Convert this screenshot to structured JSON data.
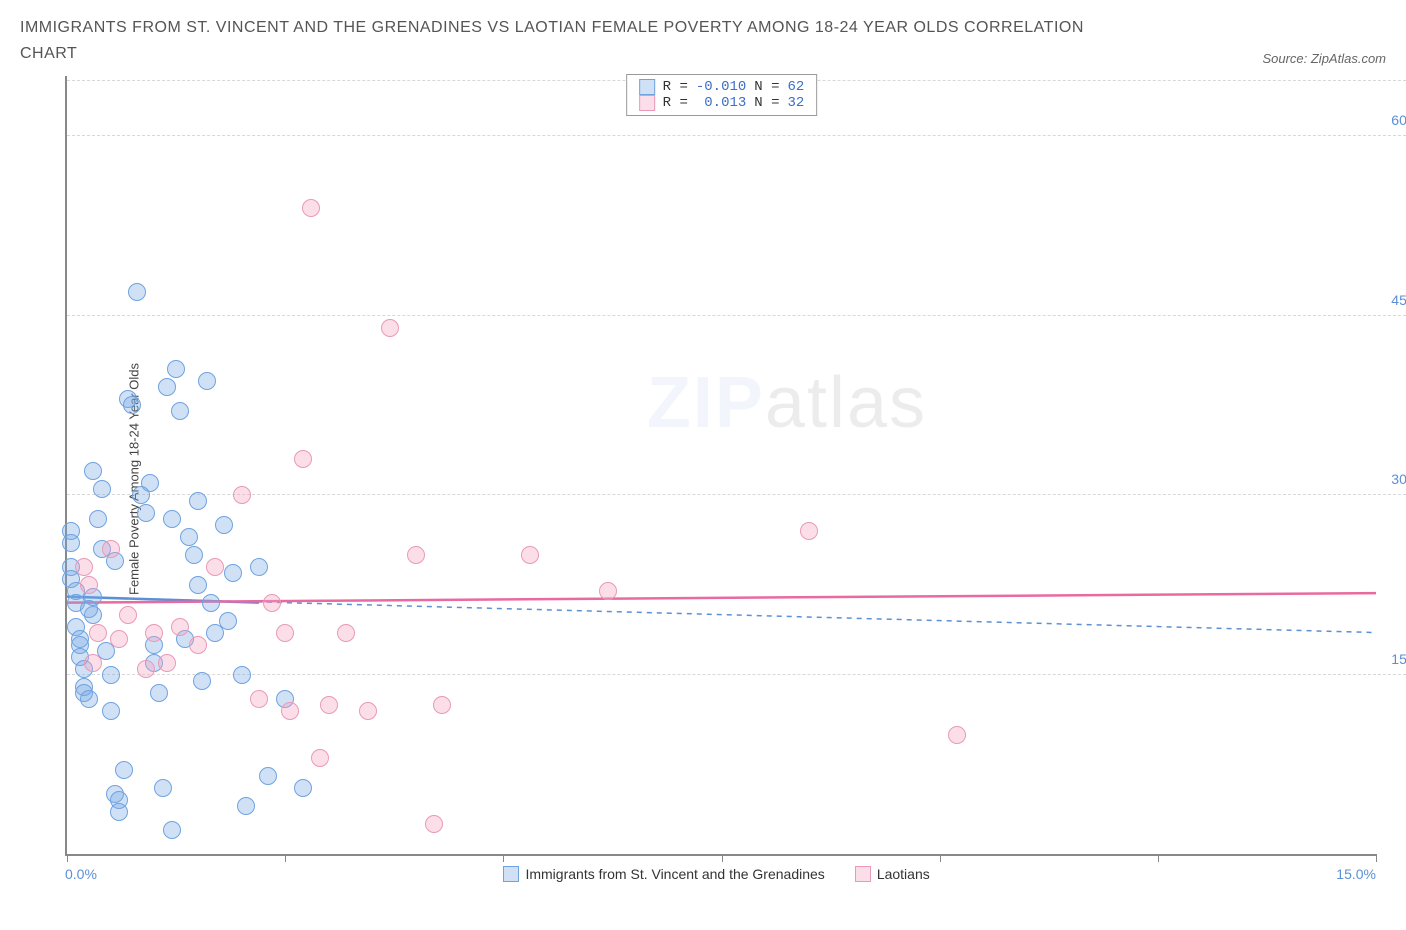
{
  "title": "IMMIGRANTS FROM ST. VINCENT AND THE GRENADINES VS LAOTIAN FEMALE POVERTY AMONG 18-24 YEAR OLDS CORRELATION CHART",
  "source": "Source: ZipAtlas.com",
  "ylabel": "Female Poverty Among 18-24 Year Olds",
  "watermark_zip": "ZIP",
  "watermark_atlas": "atlas",
  "chart": {
    "type": "scatter",
    "xlim": [
      0,
      15
    ],
    "ylim": [
      0,
      65
    ],
    "x0_label": "0.0%",
    "xmax_label": "15.0%",
    "yticks": [
      {
        "v": 15,
        "label": "15.0%"
      },
      {
        "v": 30,
        "label": "30.0%"
      },
      {
        "v": 45,
        "label": "45.0%"
      },
      {
        "v": 60,
        "label": "60.0%"
      }
    ],
    "xtick_positions": [
      0,
      2.5,
      5,
      7.5,
      10,
      12.5,
      15
    ],
    "grid_color": "#d8d8d8",
    "background_color": "#ffffff",
    "marker_radius": 9,
    "series": [
      {
        "name": "Immigrants from St. Vincent and the Grenadines",
        "fill": "rgba(120,170,230,0.35)",
        "stroke": "#6fa3e0",
        "stats": {
          "R_label": "R =",
          "R": "-0.010",
          "N_label": "N =",
          "N": "62"
        },
        "regression": {
          "y_at_x0": 21.5,
          "y_at_xmax": 18.5,
          "dash": "5,5",
          "width": 1.5,
          "color": "#5b8fd6"
        },
        "solid_segment": {
          "x0": 0,
          "x1": 2.2,
          "y0": 21.5,
          "y1": 21.0,
          "color": "#5b8fd6",
          "width": 2.5
        },
        "points": [
          [
            0.05,
            27
          ],
          [
            0.05,
            26
          ],
          [
            0.05,
            24
          ],
          [
            0.05,
            23
          ],
          [
            0.1,
            22
          ],
          [
            0.1,
            21
          ],
          [
            0.1,
            19
          ],
          [
            0.15,
            18
          ],
          [
            0.15,
            17.5
          ],
          [
            0.15,
            16.5
          ],
          [
            0.2,
            15.5
          ],
          [
            0.2,
            14
          ],
          [
            0.2,
            13.5
          ],
          [
            0.25,
            13
          ],
          [
            0.3,
            20
          ],
          [
            0.3,
            21.5
          ],
          [
            0.35,
            28
          ],
          [
            0.4,
            25.5
          ],
          [
            0.45,
            17
          ],
          [
            0.5,
            15
          ],
          [
            0.5,
            12
          ],
          [
            0.55,
            5
          ],
          [
            0.6,
            4.5
          ],
          [
            0.6,
            3.5
          ],
          [
            0.65,
            7
          ],
          [
            0.7,
            38
          ],
          [
            0.75,
            37.5
          ],
          [
            0.8,
            47
          ],
          [
            0.85,
            30
          ],
          [
            0.9,
            28.5
          ],
          [
            0.95,
            31
          ],
          [
            1.0,
            17.5
          ],
          [
            1.0,
            16
          ],
          [
            1.05,
            13.5
          ],
          [
            1.1,
            5.5
          ],
          [
            1.15,
            39
          ],
          [
            1.2,
            28
          ],
          [
            1.25,
            40.5
          ],
          [
            1.3,
            37
          ],
          [
            1.35,
            18
          ],
          [
            1.4,
            26.5
          ],
          [
            1.45,
            25
          ],
          [
            1.5,
            22.5
          ],
          [
            1.5,
            29.5
          ],
          [
            1.6,
            39.5
          ],
          [
            1.65,
            21
          ],
          [
            1.7,
            18.5
          ],
          [
            1.8,
            27.5
          ],
          [
            1.85,
            19.5
          ],
          [
            1.9,
            23.5
          ],
          [
            2.0,
            15
          ],
          [
            2.05,
            4
          ],
          [
            2.3,
            6.5
          ],
          [
            1.2,
            2
          ],
          [
            2.5,
            13
          ],
          [
            2.7,
            5.5
          ],
          [
            2.2,
            24
          ],
          [
            1.55,
            14.5
          ],
          [
            0.4,
            30.5
          ],
          [
            0.3,
            32
          ],
          [
            0.25,
            20.5
          ],
          [
            0.55,
            24.5
          ]
        ]
      },
      {
        "name": "Laotians",
        "fill": "rgba(245,160,190,0.35)",
        "stroke": "#e89ab8",
        "stats": {
          "R_label": "R =",
          "R": " 0.013",
          "N_label": "N =",
          "N": "32"
        },
        "regression": {
          "y_at_x0": 21.0,
          "y_at_xmax": 21.8,
          "dash": "",
          "width": 2.5,
          "color": "#e86aa0"
        },
        "points": [
          [
            0.2,
            24
          ],
          [
            0.25,
            22.5
          ],
          [
            0.3,
            16
          ],
          [
            0.35,
            18.5
          ],
          [
            0.5,
            25.5
          ],
          [
            0.6,
            18
          ],
          [
            0.7,
            20
          ],
          [
            0.9,
            15.5
          ],
          [
            1.0,
            18.5
          ],
          [
            1.3,
            19
          ],
          [
            1.5,
            17.5
          ],
          [
            1.7,
            24
          ],
          [
            2.0,
            30
          ],
          [
            2.2,
            13
          ],
          [
            2.35,
            21
          ],
          [
            2.5,
            18.5
          ],
          [
            2.55,
            12
          ],
          [
            2.7,
            33
          ],
          [
            2.8,
            54
          ],
          [
            2.9,
            8
          ],
          [
            3.0,
            12.5
          ],
          [
            3.2,
            18.5
          ],
          [
            3.45,
            12
          ],
          [
            3.7,
            44
          ],
          [
            4.0,
            25
          ],
          [
            4.2,
            2.5
          ],
          [
            4.3,
            12.5
          ],
          [
            5.3,
            25
          ],
          [
            6.2,
            22
          ],
          [
            8.5,
            27
          ],
          [
            10.2,
            10
          ],
          [
            1.15,
            16
          ]
        ]
      }
    ]
  }
}
